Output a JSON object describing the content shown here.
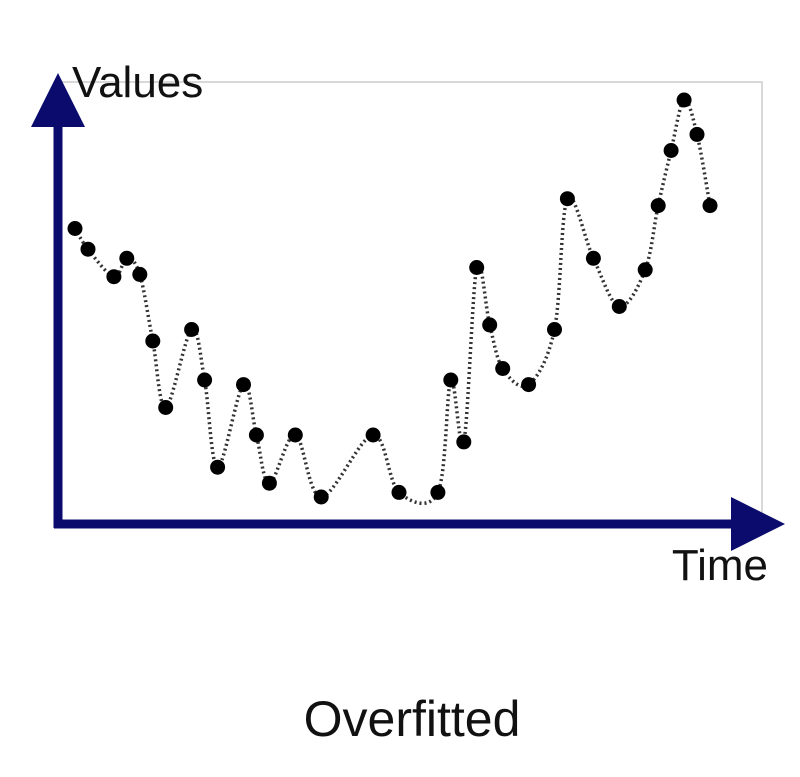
{
  "chart_data": {
    "type": "scatter",
    "ylabel": "Values",
    "xlabel": "Time",
    "caption": "Overfitted",
    "grid": false,
    "colors": {
      "axis": "#0b0b6e",
      "points": "#000000",
      "curve": "#333333",
      "frame": "#cccccc"
    },
    "series": [
      {
        "points": [
          [
            1,
            62
          ],
          [
            1.5,
            57.5
          ],
          [
            2.5,
            51.5
          ],
          [
            3,
            55.5
          ],
          [
            3.5,
            52
          ],
          [
            4,
            37.5
          ],
          [
            4.5,
            23
          ],
          [
            5.5,
            40
          ],
          [
            6,
            29
          ],
          [
            6.5,
            10
          ],
          [
            7.5,
            28
          ],
          [
            8,
            17
          ],
          [
            8.5,
            6.5
          ],
          [
            9.5,
            17
          ],
          [
            10.5,
            3.5
          ],
          [
            12.5,
            17
          ],
          [
            13.5,
            4.5
          ],
          [
            15,
            4.5
          ],
          [
            15.5,
            29
          ],
          [
            16,
            15.5
          ],
          [
            16.5,
            53.5
          ],
          [
            17,
            41
          ],
          [
            17.5,
            31.5
          ],
          [
            18.5,
            28
          ],
          [
            19.5,
            40
          ],
          [
            20,
            68.5
          ],
          [
            21,
            55.5
          ],
          [
            22,
            45
          ],
          [
            23,
            53
          ],
          [
            23.5,
            67
          ],
          [
            24,
            79
          ],
          [
            24.5,
            90
          ],
          [
            25,
            82.5
          ],
          [
            25.5,
            67
          ]
        ]
      }
    ]
  }
}
